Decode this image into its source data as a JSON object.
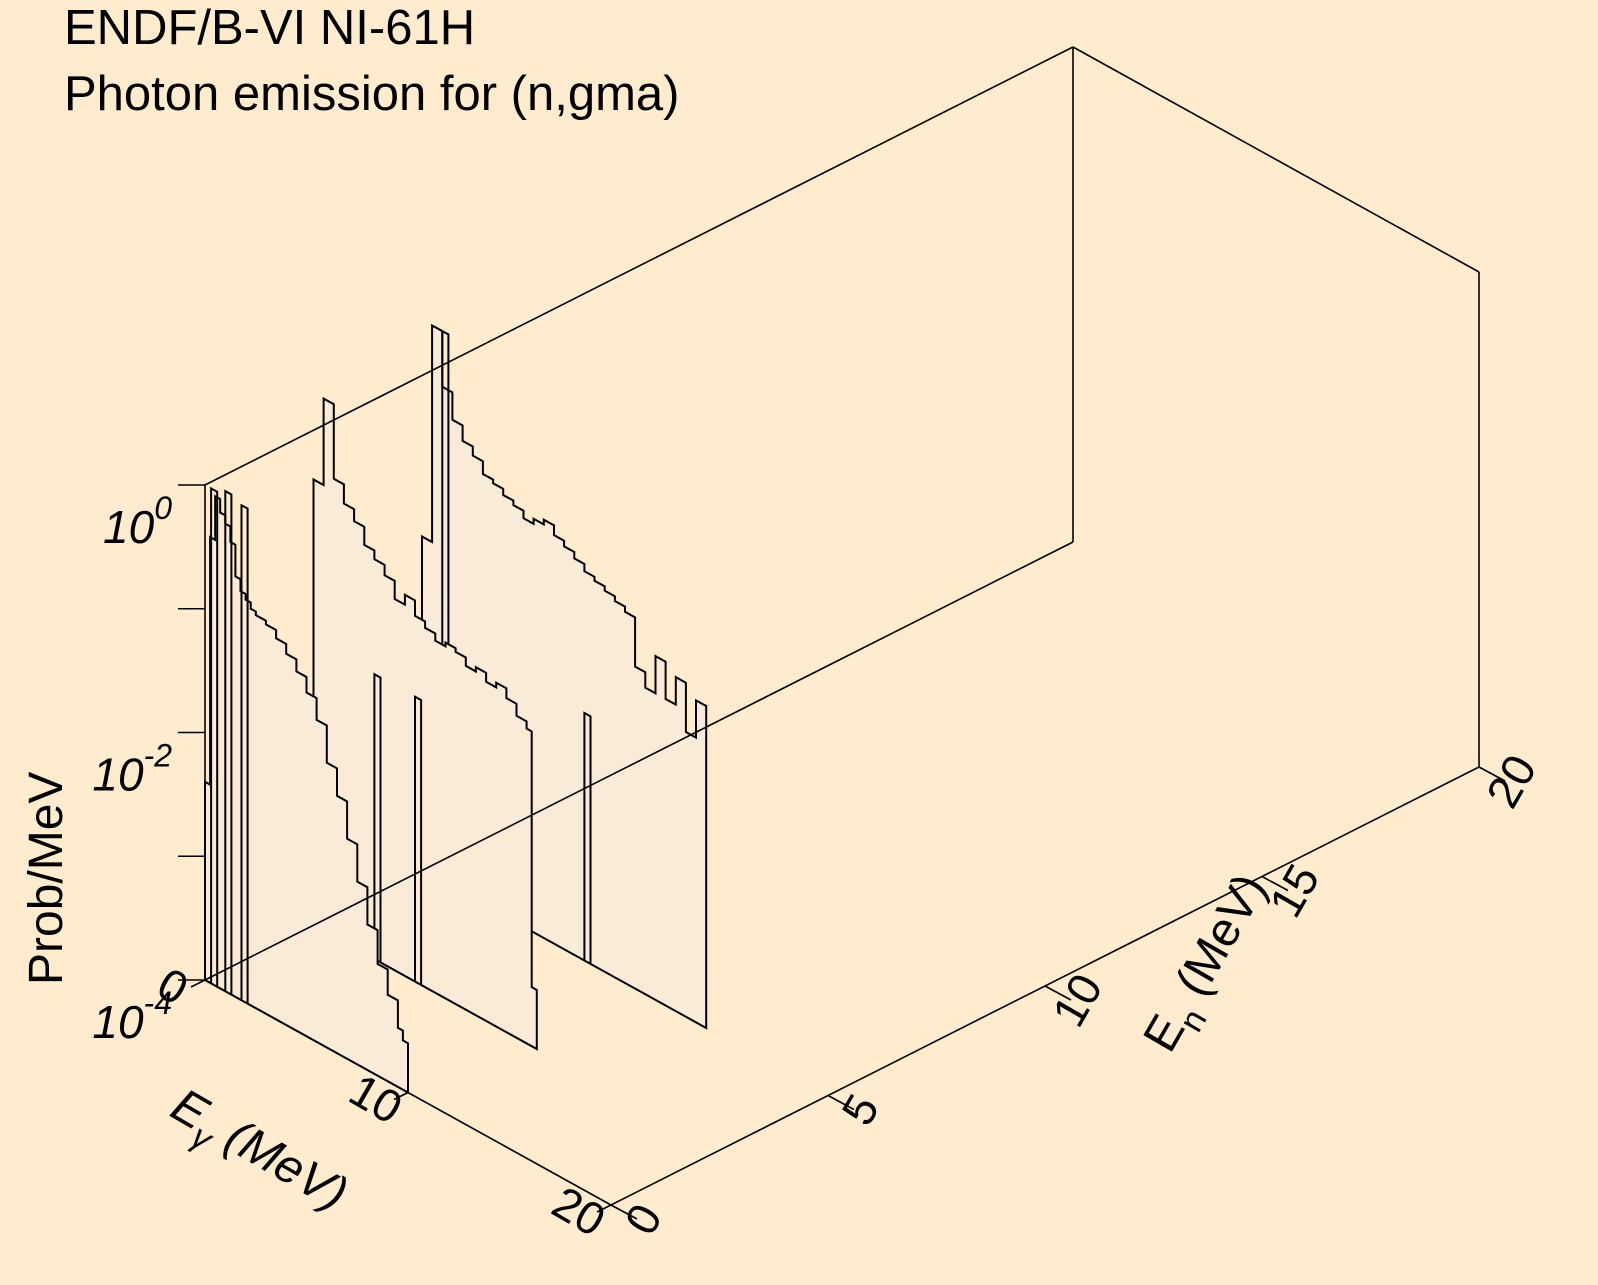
{
  "chart_data": {
    "type": "area",
    "title": "ENDF/B-VI NI-61H",
    "subtitle": "Photon emission for (n,gma)",
    "x_axis": {
      "label_main": "E",
      "label_sub": "γ",
      "label_unit": " (MeV)",
      "range": [
        0,
        20
      ],
      "ticks": [
        "0",
        "10",
        "20"
      ]
    },
    "y_axis": {
      "label_main": "E",
      "label_sub": "n",
      "label_unit": " (MeV)",
      "range": [
        0,
        20
      ],
      "ticks": [
        "0",
        "5",
        "10",
        "15",
        "20"
      ]
    },
    "z_axis": {
      "label": "Prob/MeV",
      "scale": "log",
      "range": [
        0.0001,
        1
      ],
      "ticks": [
        {
          "base": "10",
          "exp": "0"
        },
        {
          "base": "10",
          "exp": "-2"
        },
        {
          "base": "10",
          "exp": "-4"
        }
      ]
    },
    "series": [
      {
        "En": 0.0,
        "eg": [
          0,
          0.25,
          0.5,
          0.75,
          1,
          1.25,
          1.5,
          1.75,
          2,
          2.25,
          2.5,
          3,
          3.5,
          4,
          4.5,
          5,
          5.5,
          6,
          6.5,
          7,
          7.5,
          8,
          8.5,
          9,
          9.5,
          9.75,
          10
        ],
        "val": [
          0.004,
          0.4,
          0.9,
          0.7,
          0.6,
          0.45,
          0.25,
          0.2,
          0.18,
          0.16,
          0.15,
          0.14,
          0.12,
          0.1,
          0.08,
          0.06,
          0.04,
          0.02,
          0.012,
          0.006,
          0.003,
          0.0015,
          0.0008,
          0.0005,
          0.0003,
          0.00025,
          0.0002
        ],
        "spikes": [
          {
            "eg": 0.3,
            "val": 1.0
          },
          {
            "eg": 1.0,
            "val": 1.1
          },
          {
            "eg": 1.8,
            "val": 1.0
          }
        ]
      },
      {
        "En": 2.5,
        "eg": [
          0,
          0.5,
          1,
          1.5,
          2,
          2.5,
          3,
          3.5,
          4,
          4.5,
          5,
          5.5,
          6,
          6.5,
          7,
          7.5,
          8,
          8.5,
          9,
          9.5,
          10,
          10.5,
          10.75,
          11
        ],
        "val": [
          0.4,
          2.0,
          0.5,
          0.35,
          0.28,
          0.2,
          0.17,
          0.14,
          0.1,
          0.12,
          0.09,
          0.08,
          0.07,
          0.075,
          0.07,
          0.06,
          0.065,
          0.055,
          0.06,
          0.05,
          0.04,
          0.035,
          0.0003,
          0.0003
        ],
        "spikes": [
          {
            "eg": 3.0,
            "val": 0.02
          },
          {
            "eg": 5.0,
            "val": 0.02
          }
        ]
      },
      {
        "En": 5.0,
        "eg": [
          0,
          0.5,
          1,
          1.5,
          2,
          2.5,
          3,
          3.5,
          4,
          4.5,
          5,
          5.5,
          6,
          6.5,
          7,
          7.5,
          8,
          8.5,
          9,
          9.5,
          10,
          10.5,
          11,
          11.5,
          12,
          12.5,
          13,
          13.5,
          14
        ],
        "val": [
          0.05,
          3.0,
          1.0,
          0.6,
          0.45,
          0.38,
          0.3,
          0.28,
          0.25,
          0.23,
          0.2,
          0.22,
          0.24,
          0.2,
          0.18,
          0.16,
          0.14,
          0.13,
          0.12,
          0.11,
          0.1,
          0.04,
          0.03,
          0.06,
          0.03,
          0.05,
          0.02,
          0.04,
          0.008
        ],
        "spikes": [
          {
            "eg": 1.0,
            "val": 3.5
          },
          {
            "eg": 8.0,
            "val": 0.01
          }
        ]
      }
    ]
  }
}
